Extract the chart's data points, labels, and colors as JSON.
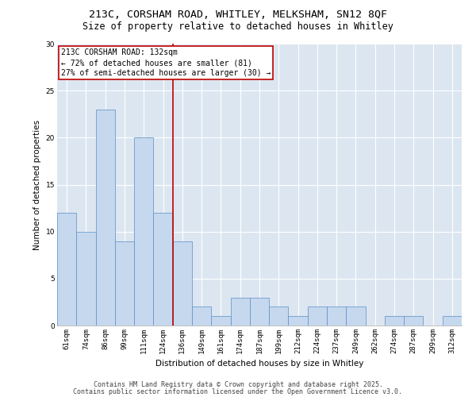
{
  "title_line1": "213C, CORSHAM ROAD, WHITLEY, MELKSHAM, SN12 8QF",
  "title_line2": "Size of property relative to detached houses in Whitley",
  "xlabel": "Distribution of detached houses by size in Whitley",
  "ylabel": "Number of detached properties",
  "categories": [
    "61sqm",
    "74sqm",
    "86sqm",
    "99sqm",
    "111sqm",
    "124sqm",
    "136sqm",
    "149sqm",
    "161sqm",
    "174sqm",
    "187sqm",
    "199sqm",
    "212sqm",
    "224sqm",
    "237sqm",
    "249sqm",
    "262sqm",
    "274sqm",
    "287sqm",
    "299sqm",
    "312sqm"
  ],
  "values": [
    12,
    10,
    23,
    9,
    20,
    12,
    9,
    2,
    1,
    3,
    3,
    2,
    1,
    2,
    2,
    2,
    0,
    1,
    1,
    0,
    1
  ],
  "bar_color": "#c5d8ed",
  "bar_edge_color": "#5b8dc8",
  "background_color": "#dce6f1",
  "annotation_text": "213C CORSHAM ROAD: 132sqm\n← 72% of detached houses are smaller (81)\n27% of semi-detached houses are larger (30) →",
  "vline_index": 5.5,
  "vline_color": "#c00000",
  "box_color": "#c00000",
  "ylim": [
    0,
    30
  ],
  "yticks": [
    0,
    5,
    10,
    15,
    20,
    25,
    30
  ],
  "footer_line1": "Contains HM Land Registry data © Crown copyright and database right 2025.",
  "footer_line2": "Contains public sector information licensed under the Open Government Licence v3.0.",
  "title_fontsize": 9.5,
  "subtitle_fontsize": 8.5,
  "tick_fontsize": 6.5,
  "ylabel_fontsize": 7.5,
  "xlabel_fontsize": 7.5,
  "annotation_fontsize": 7,
  "footer_fontsize": 6
}
